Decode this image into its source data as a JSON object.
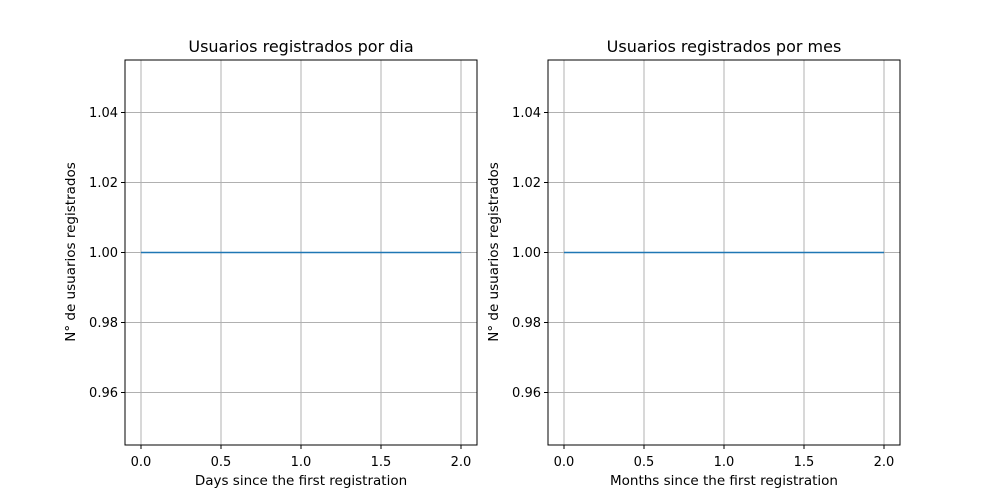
{
  "chart_data": [
    {
      "type": "line",
      "title": "Usuarios registrados por dia",
      "xlabel": "Days since the first registration",
      "ylabel": "N° de usuarios registrados",
      "xlim": [
        -0.1,
        2.1
      ],
      "ylim": [
        0.945,
        1.055
      ],
      "xticks": [
        0.0,
        0.5,
        1.0,
        1.5,
        2.0
      ],
      "xtick_labels": [
        "0.0",
        "0.5",
        "1.0",
        "1.5",
        "2.0"
      ],
      "yticks": [
        0.96,
        0.98,
        1.0,
        1.02,
        1.04
      ],
      "ytick_labels": [
        "0.96",
        "0.98",
        "1.00",
        "1.02",
        "1.04"
      ],
      "grid": true,
      "series": [
        {
          "x": [
            0,
            1,
            2
          ],
          "y": [
            1,
            1,
            1
          ],
          "color": "#1f77b4"
        }
      ]
    },
    {
      "type": "line",
      "title": "Usuarios registrados por mes",
      "xlabel": "Months since the first registration",
      "ylabel": "N° de usuarios registrados",
      "xlim": [
        -0.1,
        2.1
      ],
      "ylim": [
        0.945,
        1.055
      ],
      "xticks": [
        0.0,
        0.5,
        1.0,
        1.5,
        2.0
      ],
      "xtick_labels": [
        "0.0",
        "0.5",
        "1.0",
        "1.5",
        "2.0"
      ],
      "yticks": [
        0.96,
        0.98,
        1.0,
        1.02,
        1.04
      ],
      "ytick_labels": [
        "0.96",
        "0.98",
        "1.00",
        "1.02",
        "1.04"
      ],
      "grid": true,
      "series": [
        {
          "x": [
            0,
            1,
            2
          ],
          "y": [
            1,
            1,
            1
          ],
          "color": "#1f77b4"
        }
      ]
    }
  ]
}
